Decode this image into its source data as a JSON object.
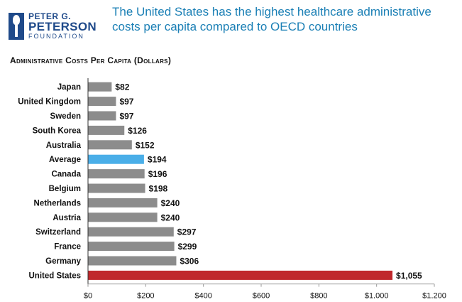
{
  "logo": {
    "line1": "PETER G.",
    "line2": "PETERSON",
    "line3": "FOUNDATION"
  },
  "headline": "The United States has the highest healthcare administrative costs per capita compared to OECD countries",
  "colors": {
    "bar_default": "#8c8c8c",
    "bar_average": "#4aaee8",
    "bar_us": "#c0282c",
    "headline": "#1a7fb5",
    "brand": "#1f4a8a"
  },
  "chart_data": {
    "type": "bar",
    "orientation": "horizontal",
    "title": "Administrative Costs Per Capita (Dollars)",
    "categories": [
      "Japan",
      "United Kingdom",
      "Sweden",
      "South Korea",
      "Australia",
      "Average",
      "Canada",
      "Belgium",
      "Netherlands",
      "Austria",
      "Switzerland",
      "France",
      "Germany",
      "United States"
    ],
    "values": [
      82,
      97,
      97,
      126,
      152,
      194,
      196,
      198,
      240,
      240,
      297,
      299,
      306,
      1055
    ],
    "value_labels": [
      "$82",
      "$97",
      "$97",
      "$126",
      "$152",
      "$194",
      "$196",
      "$198",
      "$240",
      "$240",
      "$297",
      "$299",
      "$306",
      "$1,055"
    ],
    "xlim": [
      0,
      1200
    ],
    "xticks": [
      0,
      200,
      400,
      600,
      800,
      1000,
      1200
    ],
    "xtick_labels": [
      "$0",
      "$200",
      "$400",
      "$600",
      "$800",
      "$1,000",
      "$1,200"
    ],
    "highlight": {
      "Average": "average",
      "United States": "us"
    },
    "grid": false
  }
}
